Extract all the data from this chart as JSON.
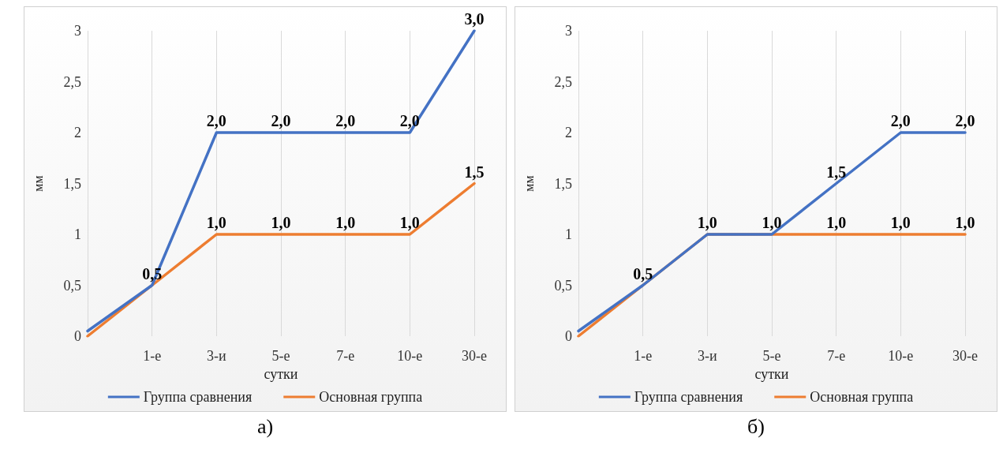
{
  "chart_data": [
    {
      "type": "line",
      "xlabel": "сутки",
      "ylabel": "мм",
      "annotations": [
        "а)"
      ],
      "categories": [
        null,
        "1-е",
        "3-и",
        "5-е",
        "7-е",
        "10-е",
        "30-е"
      ],
      "ylim": [
        0,
        3
      ],
      "yticks": [
        0,
        {
          "value": 0.5,
          "label": "0,5"
        },
        1,
        {
          "value": 1.5,
          "label": "1,5"
        },
        2,
        {
          "value": 2.5,
          "label": "2,5"
        },
        3
      ],
      "grid": "x",
      "legend": "bottom",
      "marker": "none",
      "line_style": "solid",
      "series": [
        {
          "name": "Группа сравнения",
          "color": "#4472c4",
          "values": [
            0.05,
            0.5,
            2,
            2,
            2,
            2,
            3
          ],
          "value_labels": [
            null,
            "0,5",
            "2,0",
            "2,0",
            "2,0",
            "2,0",
            "3,0"
          ]
        },
        {
          "name": "Основная группа",
          "color": "#ed7d31",
          "values": [
            0,
            0.5,
            1,
            1,
            1,
            1,
            1.5
          ],
          "value_labels": [
            null,
            null,
            "1,0",
            "1,0",
            "1,0",
            "1,0",
            "1,5"
          ]
        }
      ]
    },
    {
      "type": "line",
      "xlabel": "сутки",
      "ylabel": "мм",
      "annotations": [
        "б)"
      ],
      "categories": [
        null,
        "1-е",
        "3-и",
        "5-е",
        "7-е",
        "10-е",
        "30-е"
      ],
      "ylim": [
        0,
        3
      ],
      "yticks": [
        0,
        {
          "value": 0.5,
          "label": "0,5"
        },
        1,
        {
          "value": 1.5,
          "label": "1,5"
        },
        2,
        {
          "value": 2.5,
          "label": "2,5"
        },
        3
      ],
      "grid": "x",
      "legend": "bottom",
      "marker": "none",
      "line_style": "solid",
      "series": [
        {
          "name": "Группа сравнения",
          "color": "#4472c4",
          "values": [
            0.05,
            0.5,
            1,
            1,
            1.5,
            2,
            2
          ],
          "value_labels": [
            null,
            "0,5",
            "1,0",
            "1,0",
            "1,5",
            "2,0",
            "2,0"
          ]
        },
        {
          "name": "Основная группа",
          "color": "#ed7d31",
          "values": [
            0,
            0.5,
            1,
            1,
            1,
            1,
            1
          ],
          "value_labels": [
            null,
            null,
            null,
            null,
            "1,0",
            "1,0",
            "1,0"
          ]
        }
      ]
    }
  ]
}
